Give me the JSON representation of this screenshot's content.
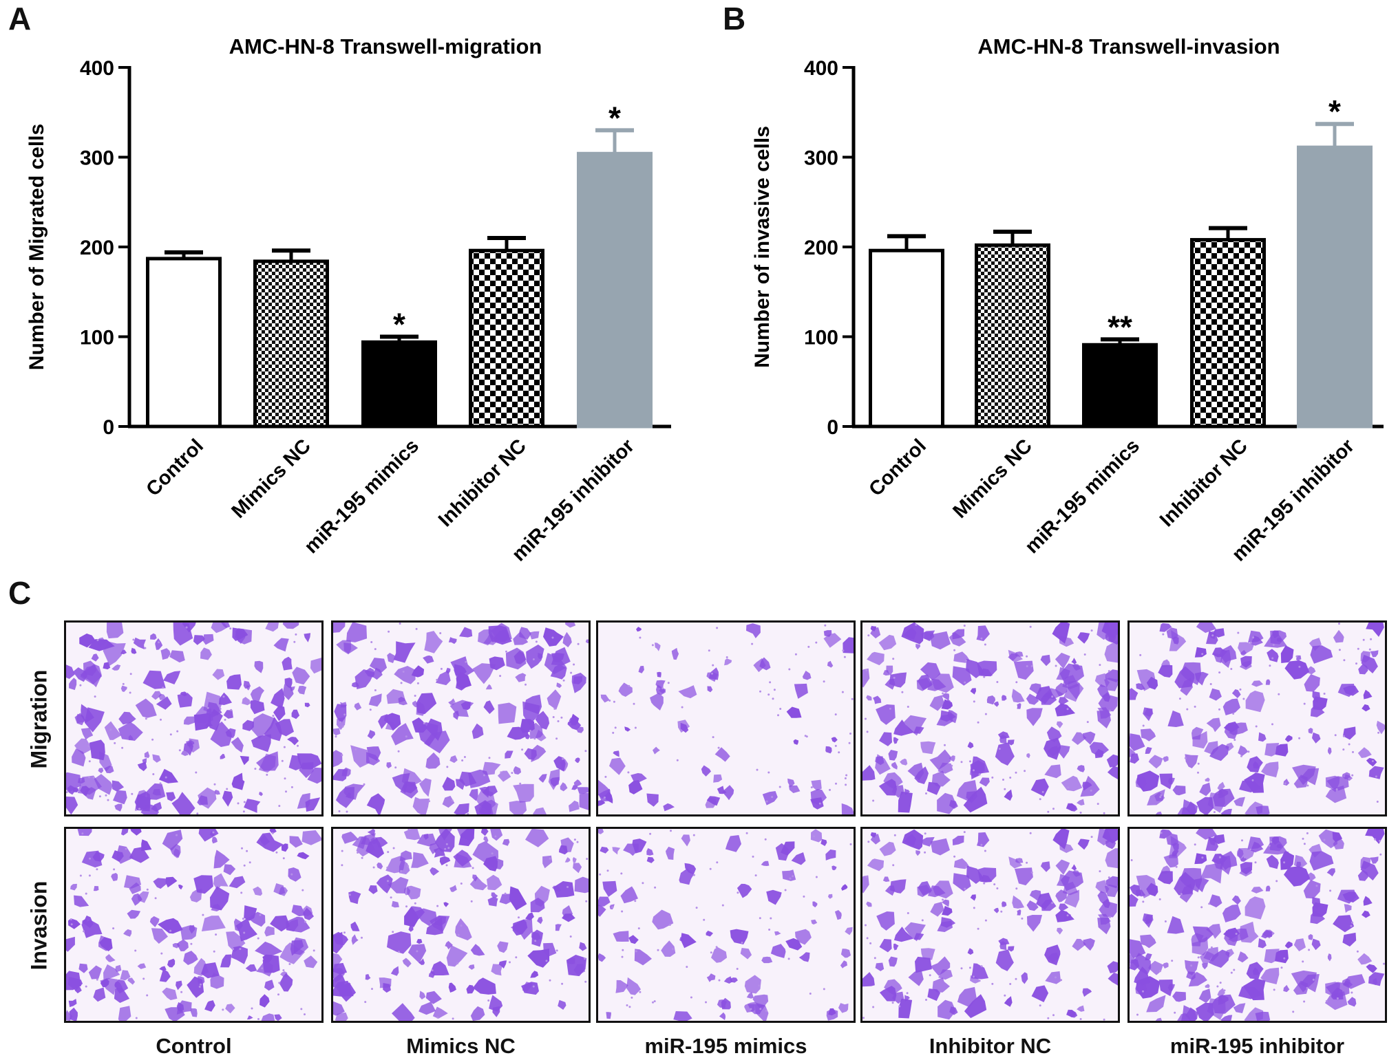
{
  "panels": {
    "a": "A",
    "b": "B",
    "c": "C"
  },
  "chart_data": [
    {
      "type": "bar",
      "title": "AMC-HN-8  Transwell-migration",
      "xlabel": "",
      "ylabel": "Number of Migrated cells",
      "ylim": [
        0,
        400
      ],
      "yticks": [
        0,
        100,
        200,
        300,
        400
      ],
      "categories": [
        "Control",
        "Mimics NC",
        "miR-195 mimics",
        "Inhibitor NC",
        "miR-195 inhibitor"
      ],
      "values": [
        187,
        184,
        94,
        196,
        304
      ],
      "errors": [
        7,
        12,
        6,
        14,
        26
      ],
      "significance": [
        "",
        "",
        "*",
        "",
        "*"
      ],
      "fills": [
        "white",
        "fine-check",
        "black",
        "coarse-check",
        "gray"
      ],
      "colors": {
        "gray": "#97a5b0",
        "black": "#000000"
      }
    },
    {
      "type": "bar",
      "title": "AMC-HN-8 Transwell-invasion",
      "xlabel": "",
      "ylabel": "Number of invasive cells",
      "ylim": [
        0,
        400
      ],
      "yticks": [
        0,
        100,
        200,
        300,
        400
      ],
      "categories": [
        "Control",
        "Mimics NC",
        "miR-195 mimics",
        "Inhibitor NC",
        "miR-195 inhibitor"
      ],
      "values": [
        196,
        202,
        91,
        208,
        311
      ],
      "errors": [
        16,
        15,
        6,
        13,
        26
      ],
      "significance": [
        "",
        "",
        "**",
        "",
        "*"
      ],
      "fills": [
        "white",
        "fine-check",
        "black",
        "coarse-check",
        "gray"
      ],
      "colors": {
        "gray": "#97a5b0",
        "black": "#000000"
      }
    }
  ],
  "micrographs": {
    "rows": [
      "Migration",
      "Invasion"
    ],
    "columns": [
      "Control",
      "Mimics NC",
      "miR-195 mimics",
      "Inhibitor NC",
      "miR-195 inhibitor"
    ],
    "stain_color": "#8a4fe0",
    "background_color": "#f8f2fb",
    "density": [
      [
        0.55,
        0.55,
        0.22,
        0.55,
        0.5
      ],
      [
        0.5,
        0.5,
        0.28,
        0.45,
        0.6
      ]
    ]
  }
}
